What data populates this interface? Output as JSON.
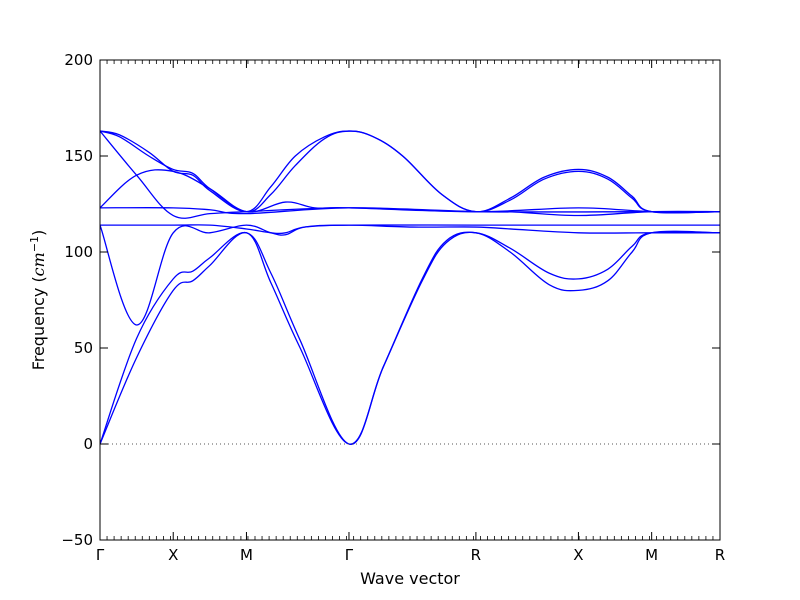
{
  "chart_data": {
    "type": "line",
    "title": "",
    "xlabel": "Wave vector",
    "ylabel_text": "Frequency (",
    "ylabel_unit": "cm",
    "ylabel_exp": "−1",
    "ylabel_close": ")",
    "ylim": [
      -50,
      200
    ],
    "yticks": [
      -50,
      0,
      50,
      100,
      150,
      200
    ],
    "ytick_labels": [
      "−50",
      "0",
      "50",
      "100",
      "150",
      "200"
    ],
    "xlim": [
      0,
      6.35
    ],
    "kpoints": [
      {
        "label": "Γ",
        "x": 0
      },
      {
        "label": "X",
        "x": 0.75
      },
      {
        "label": "M",
        "x": 1.5
      },
      {
        "label": "Γ",
        "x": 2.55
      },
      {
        "label": "R",
        "x": 3.85
      },
      {
        "label": "X",
        "x": 4.9
      },
      {
        "label": "M",
        "x": 5.65
      },
      {
        "label": "R",
        "x": 6.35
      }
    ],
    "zero_line": true,
    "line_color": "#0000ff",
    "series": [
      {
        "values": [
          [
            0,
            0
          ],
          [
            0.375,
            45
          ],
          [
            0.75,
            80
          ],
          [
            0.95,
            85
          ],
          [
            1.125,
            93
          ],
          [
            1.5,
            110
          ],
          [
            1.75,
            84
          ],
          [
            2.05,
            50
          ],
          [
            2.55,
            0
          ],
          [
            2.9,
            40
          ],
          [
            3.3,
            85
          ],
          [
            3.55,
            105
          ],
          [
            3.85,
            110
          ],
          [
            4.2,
            100
          ],
          [
            4.6,
            83
          ],
          [
            4.9,
            80
          ],
          [
            5.2,
            85
          ],
          [
            5.45,
            100
          ],
          [
            5.65,
            110
          ],
          [
            6.35,
            110
          ]
        ]
      },
      {
        "values": [
          [
            0,
            0
          ],
          [
            0.375,
            55
          ],
          [
            0.75,
            86
          ],
          [
            0.95,
            90
          ],
          [
            1.125,
            97
          ],
          [
            1.5,
            110
          ],
          [
            1.75,
            89
          ],
          [
            2.05,
            54
          ],
          [
            2.55,
            0
          ],
          [
            2.9,
            40
          ],
          [
            3.3,
            86
          ],
          [
            3.55,
            106
          ],
          [
            3.85,
            110
          ],
          [
            4.2,
            102
          ],
          [
            4.6,
            89
          ],
          [
            4.9,
            86
          ],
          [
            5.2,
            91
          ],
          [
            5.45,
            103
          ],
          [
            5.65,
            110
          ],
          [
            6.35,
            110
          ]
        ]
      },
      {
        "values": [
          [
            0,
            114
          ],
          [
            0.375,
            62
          ],
          [
            0.75,
            110
          ],
          [
            1.125,
            110
          ],
          [
            1.5,
            114
          ],
          [
            1.75,
            110
          ],
          [
            1.9,
            109
          ],
          [
            2.1,
            113
          ],
          [
            2.55,
            114
          ],
          [
            3.85,
            114
          ],
          [
            4.9,
            114
          ],
          [
            5.65,
            114
          ],
          [
            6.35,
            114
          ]
        ]
      },
      {
        "values": [
          [
            0,
            114
          ],
          [
            0.75,
            114
          ],
          [
            1.125,
            114
          ],
          [
            1.5,
            112
          ],
          [
            1.75,
            110
          ],
          [
            1.9,
            110
          ],
          [
            2.1,
            113
          ],
          [
            2.55,
            114
          ],
          [
            3.2,
            113
          ],
          [
            3.85,
            113
          ],
          [
            4.2,
            112
          ],
          [
            4.9,
            110
          ],
          [
            5.65,
            110
          ],
          [
            6.35,
            110
          ]
        ]
      },
      {
        "values": [
          [
            0,
            123
          ],
          [
            0.375,
            140
          ],
          [
            0.75,
            142
          ],
          [
            1.125,
            133
          ],
          [
            1.5,
            121
          ],
          [
            1.9,
            126
          ],
          [
            2.2,
            123
          ],
          [
            2.55,
            123
          ],
          [
            3.85,
            121
          ],
          [
            4.9,
            123
          ],
          [
            5.65,
            121
          ],
          [
            6.35,
            121
          ]
        ]
      },
      {
        "values": [
          [
            0,
            123
          ],
          [
            0.75,
            123
          ],
          [
            1.125,
            122
          ],
          [
            1.5,
            120
          ],
          [
            2.55,
            123
          ],
          [
            3.85,
            121
          ],
          [
            4.2,
            121
          ],
          [
            4.9,
            119
          ],
          [
            5.65,
            121
          ],
          [
            6.35,
            121
          ]
        ]
      },
      {
        "values": [
          [
            0,
            163
          ],
          [
            0.375,
            140
          ],
          [
            0.75,
            119
          ],
          [
            1.125,
            120
          ],
          [
            1.5,
            121
          ],
          [
            2.55,
            123
          ],
          [
            3.85,
            121
          ],
          [
            5.65,
            121
          ],
          [
            6.35,
            121
          ]
        ]
      },
      {
        "values": [
          [
            0,
            163
          ],
          [
            0.2,
            160
          ],
          [
            0.5,
            150
          ],
          [
            0.75,
            143
          ],
          [
            0.95,
            141
          ],
          [
            1.125,
            133
          ],
          [
            1.5,
            121
          ],
          [
            1.75,
            130
          ],
          [
            2.0,
            145
          ],
          [
            2.3,
            159
          ],
          [
            2.55,
            163
          ],
          [
            2.8,
            160
          ],
          [
            3.1,
            150
          ],
          [
            3.5,
            130
          ],
          [
            3.85,
            121
          ],
          [
            4.2,
            128
          ],
          [
            4.55,
            139
          ],
          [
            4.9,
            143
          ],
          [
            5.2,
            139
          ],
          [
            5.45,
            129
          ],
          [
            5.65,
            121
          ],
          [
            6.35,
            121
          ]
        ]
      },
      {
        "values": [
          [
            0,
            163
          ],
          [
            0.2,
            161
          ],
          [
            0.5,
            152
          ],
          [
            0.75,
            142
          ],
          [
            0.95,
            140
          ],
          [
            1.125,
            132
          ],
          [
            1.5,
            121
          ],
          [
            1.75,
            134
          ],
          [
            2.0,
            150
          ],
          [
            2.3,
            160
          ],
          [
            2.55,
            163
          ],
          [
            2.8,
            160
          ],
          [
            3.1,
            150
          ],
          [
            3.5,
            130
          ],
          [
            3.85,
            121
          ],
          [
            4.2,
            127
          ],
          [
            4.55,
            138
          ],
          [
            4.9,
            142
          ],
          [
            5.2,
            138
          ],
          [
            5.45,
            128
          ],
          [
            5.65,
            121
          ],
          [
            6.35,
            121
          ]
        ]
      }
    ]
  }
}
